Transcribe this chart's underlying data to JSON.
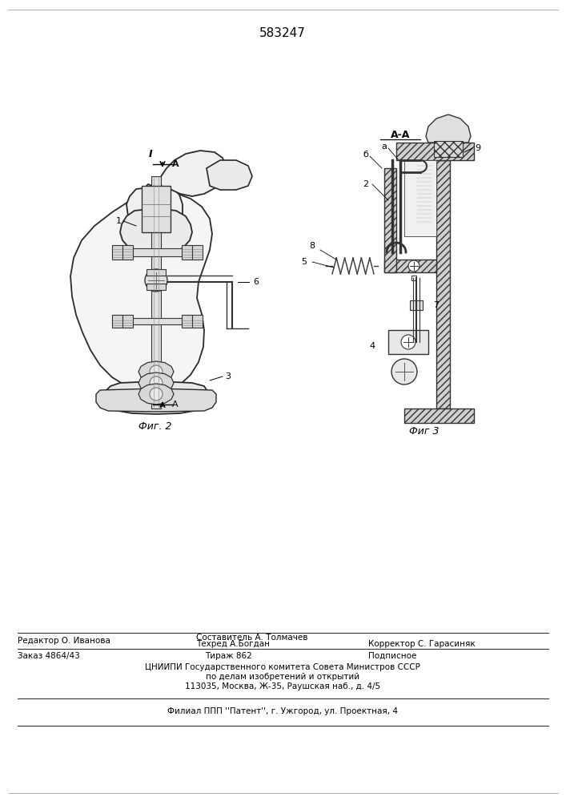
{
  "patent_number": "583247",
  "fig2_label": "Фиг. 2",
  "fig3_label": "Фиг 3",
  "section_label": "А-А",
  "arrow_label_1": "I",
  "arrow_label_A": "A",
  "editor_line": "Редактор О. Иванова",
  "compiler_line": "Составитель А. Толмачев",
  "tecred_line": "Техред А.Богдан",
  "corrector_line": "Корректор С. Гарасиняк",
  "order_line": "Заказ 4864/43",
  "tirazh_line": "Тираж 862",
  "podpisnoe_line": "Подписное",
  "tsniip1": "ЦНИИПИ Государственного комитета Совета Министров СССР",
  "tsniip2": "по делам изобретений и открытий",
  "tsniip3": "113035, Москва, Ж-35, Раушская наб., д. 4/5",
  "filial": "Филиал ППП ''Патент'', г. Ужгород, ул. Проектная, 4",
  "bg_color": "#ffffff"
}
